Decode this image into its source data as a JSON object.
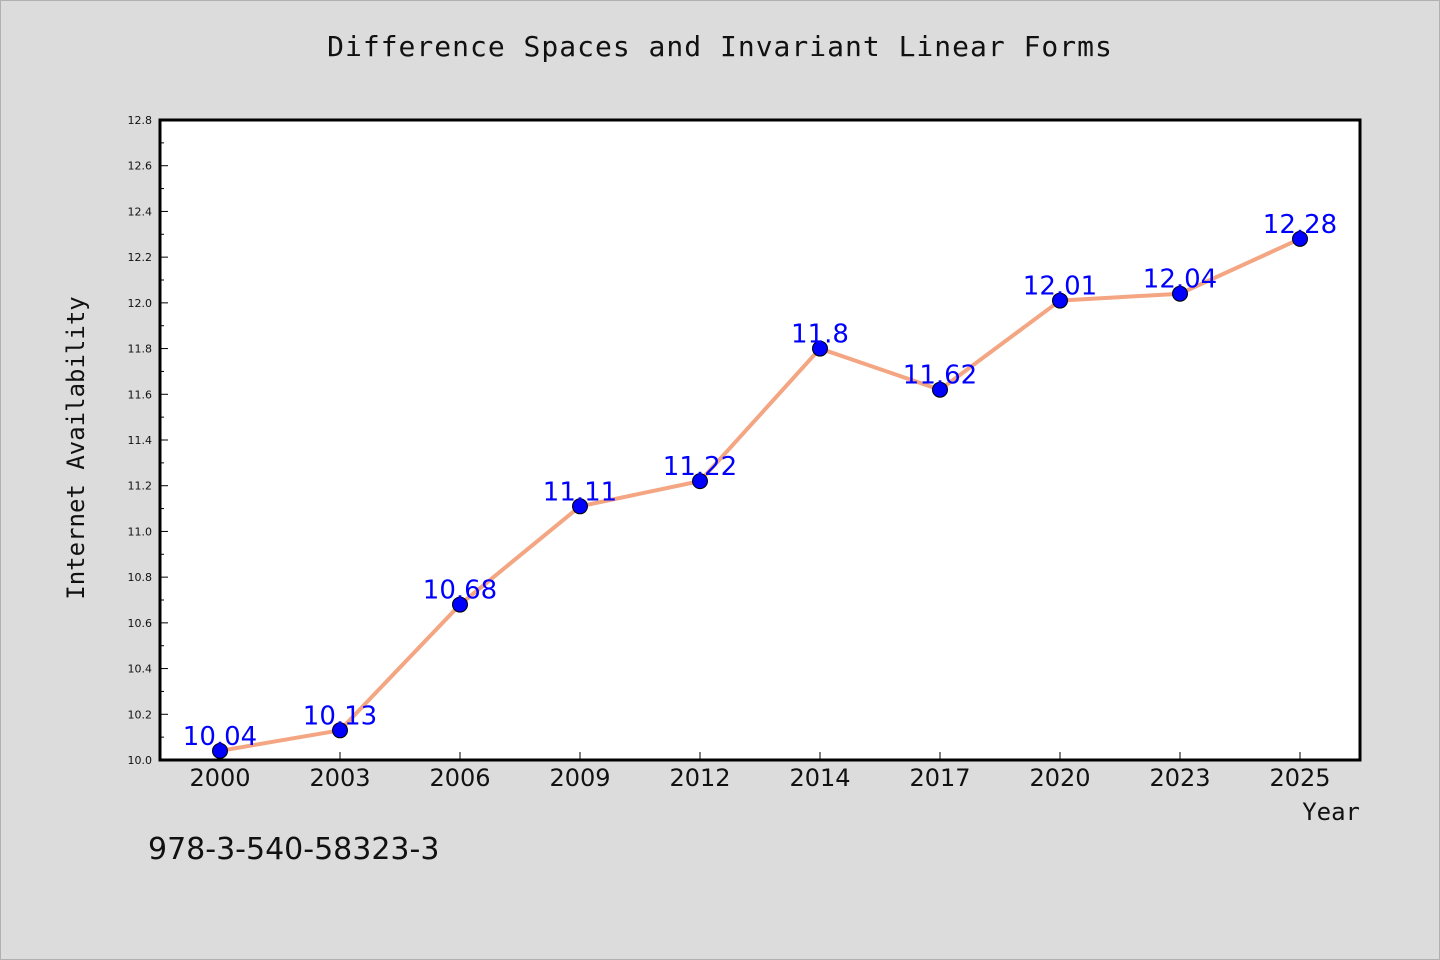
{
  "chart_data": {
    "type": "line",
    "title": "Difference Spaces and Invariant Linear Forms",
    "xlabel": "Year",
    "ylabel": "Internet Availability",
    "categories": [
      "2000",
      "2003",
      "2006",
      "2009",
      "2012",
      "2014",
      "2017",
      "2020",
      "2023",
      "2025"
    ],
    "series": [
      {
        "values": [
          10.04,
          10.13,
          10.68,
          11.11,
          11.22,
          11.8,
          11.62,
          12.01,
          12.04,
          12.28
        ]
      }
    ],
    "data_labels": [
      "10.04",
      "10.13",
      "10.68",
      "11.11",
      "11.22",
      "11.8",
      "11.62",
      "12.01",
      "12.04",
      "12.28"
    ],
    "ylim": [
      10.0,
      12.8
    ],
    "yticks": [
      "10.0",
      "10.2",
      "10.4",
      "10.6",
      "10.8",
      "11.0",
      "11.2",
      "11.4",
      "11.6",
      "11.8",
      "12.0",
      "12.2",
      "12.4",
      "12.6",
      "12.8"
    ],
    "grid": false,
    "line_color": "#f4a582",
    "marker_color": "#0000ff",
    "label_color": "#0000ff"
  },
  "footer": {
    "isbn": "978-3-540-58323-3"
  }
}
